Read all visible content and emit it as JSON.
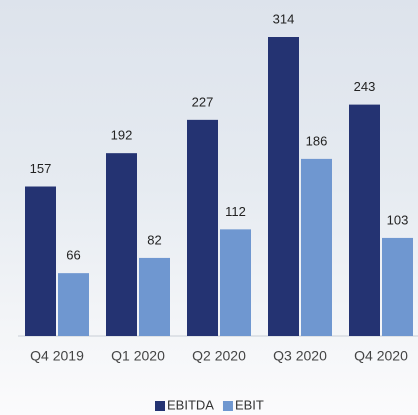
{
  "chart_data": {
    "type": "bar",
    "categories": [
      "Q4 2019",
      "Q1 2020",
      "Q2 2020",
      "Q3 2020",
      "Q4 2020"
    ],
    "series": [
      {
        "name": "EBITDA",
        "color": "#243372",
        "values": [
          157,
          192,
          227,
          314,
          243
        ]
      },
      {
        "name": "EBIT",
        "color": "#6f97d0",
        "values": [
          66,
          82,
          112,
          186,
          103
        ]
      }
    ],
    "legend": "bottom"
  }
}
